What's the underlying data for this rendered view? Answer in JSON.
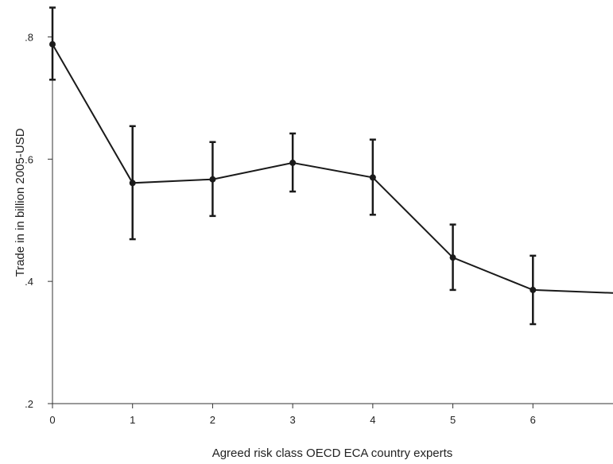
{
  "chart_data": {
    "type": "line",
    "title": "",
    "xlabel": "Agreed risk class OECD ECA country experts",
    "ylabel": "Trade in in billion 2005-USD",
    "x_ticks": [
      0,
      1,
      2,
      3,
      4,
      5,
      6
    ],
    "x_tick_labels": [
      "0",
      "1",
      "2",
      "3",
      "4",
      "5",
      "6"
    ],
    "y_ticks": [
      0.2,
      0.4,
      0.6,
      0.8
    ],
    "y_tick_labels": [
      ".2",
      ".4",
      ".6",
      ".8"
    ],
    "xlim": [
      0,
      7
    ],
    "ylim": [
      0.2,
      0.85
    ],
    "grid": false,
    "series": [
      {
        "x": [
          0,
          1,
          2,
          3,
          4,
          5,
          6,
          7
        ],
        "y": [
          0.788,
          0.561,
          0.567,
          0.594,
          0.57,
          0.439,
          0.386,
          0.381
        ],
        "ci_low": [
          0.73,
          0.469,
          0.507,
          0.547,
          0.509,
          0.386,
          0.33,
          null
        ],
        "ci_high": [
          0.848,
          0.654,
          0.628,
          0.642,
          0.632,
          0.493,
          0.442,
          null
        ]
      }
    ]
  }
}
